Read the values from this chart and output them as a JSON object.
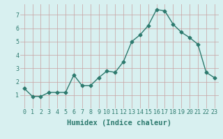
{
  "x": [
    0,
    1,
    2,
    3,
    4,
    5,
    6,
    7,
    8,
    9,
    10,
    11,
    12,
    13,
    14,
    15,
    16,
    17,
    18,
    19,
    20,
    21,
    22,
    23
  ],
  "y": [
    1.5,
    0.9,
    0.9,
    1.2,
    1.2,
    1.2,
    2.5,
    1.7,
    1.7,
    2.3,
    2.8,
    2.7,
    3.5,
    5.0,
    5.5,
    6.2,
    7.4,
    7.3,
    6.3,
    5.7,
    5.3,
    4.8,
    2.7,
    2.3
  ],
  "line_color": "#2d7a6e",
  "bg_color": "#d8f0f0",
  "grid_color_major": "#c8a0a0",
  "grid_color_minor": "#c8d8d8",
  "xlabel": "Humidex (Indice chaleur)",
  "ylim": [
    0,
    7.8
  ],
  "xlim": [
    -0.5,
    23.5
  ],
  "yticks": [
    1,
    2,
    3,
    4,
    5,
    6,
    7
  ],
  "xticks": [
    0,
    1,
    2,
    3,
    4,
    5,
    6,
    7,
    8,
    9,
    10,
    11,
    12,
    13,
    14,
    15,
    16,
    17,
    18,
    19,
    20,
    21,
    22,
    23
  ],
  "xtick_labels": [
    "0",
    "1",
    "2",
    "3",
    "4",
    "5",
    "6",
    "7",
    "8",
    "9",
    "10",
    "11",
    "12",
    "13",
    "14",
    "15",
    "16",
    "17",
    "18",
    "19",
    "20",
    "21",
    "22",
    "23"
  ],
  "marker": "D",
  "marker_size": 2.5,
  "line_width": 1.0,
  "tick_fontsize": 6,
  "xlabel_fontsize": 7.5
}
